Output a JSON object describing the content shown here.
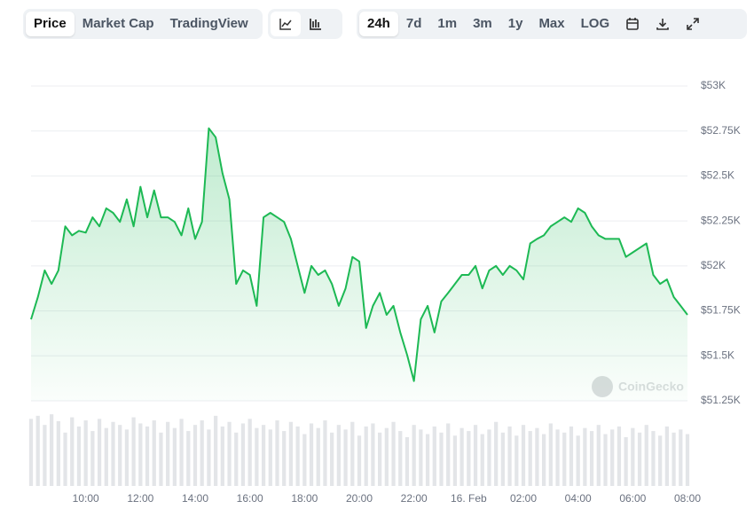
{
  "toolbar": {
    "views": [
      "Price",
      "Market Cap",
      "TradingView"
    ],
    "active_view": "Price",
    "ranges": [
      "24h",
      "7d",
      "1m",
      "3m",
      "1y",
      "Max",
      "LOG"
    ],
    "active_range": "24h"
  },
  "watermark": "CoinGecko",
  "chart_data": {
    "type": "line",
    "categories": [
      null,
      null,
      null,
      null,
      null,
      null,
      null,
      null,
      "10:00",
      null,
      null,
      null,
      null,
      null,
      null,
      null,
      "12:00",
      null,
      null,
      null,
      null,
      null,
      null,
      null,
      "14:00",
      null,
      null,
      null,
      null,
      null,
      null,
      null,
      "16:00",
      null,
      null,
      null,
      null,
      null,
      null,
      null,
      "18:00",
      null,
      null,
      null,
      null,
      null,
      null,
      null,
      "20:00",
      null,
      null,
      null,
      null,
      null,
      null,
      null,
      "22:00",
      null,
      null,
      null,
      null,
      null,
      null,
      null,
      "16. Feb",
      null,
      null,
      null,
      null,
      null,
      null,
      null,
      "02:00",
      null,
      null,
      null,
      null,
      null,
      null,
      null,
      "04:00",
      null,
      null,
      null,
      null,
      null,
      null,
      null,
      "06:00",
      null,
      null,
      null,
      null,
      null,
      null,
      null,
      "08:00"
    ],
    "series": [
      {
        "color": "#1db954",
        "values": [
          51703,
          51827,
          51975,
          51900,
          51975,
          52220,
          52170,
          52195,
          52185,
          52270,
          52220,
          52320,
          52295,
          52245,
          52370,
          52220,
          52440,
          52270,
          52420,
          52270,
          52270,
          52245,
          52170,
          52320,
          52150,
          52245,
          52765,
          52715,
          52515,
          52370,
          51900,
          51975,
          51950,
          51778,
          52270,
          52295,
          52270,
          52245,
          52150,
          52000,
          51850,
          52000,
          51950,
          51975,
          51900,
          51778,
          51875,
          52050,
          52025,
          51655,
          51778,
          51850,
          51728,
          51778,
          51630,
          51505,
          51360,
          51703,
          51778,
          51630,
          51803,
          51850,
          51900,
          51950,
          51950,
          52000,
          51875,
          51975,
          52000,
          51950,
          52000,
          51975,
          51925,
          52125,
          52150,
          52170,
          52220,
          52245,
          52270,
          52245,
          52320,
          52295,
          52220,
          52170,
          52150,
          52150,
          52150,
          52050,
          52075,
          52100,
          52125,
          51950,
          51900,
          51925,
          51827,
          51778,
          51728
        ]
      },
      {
        "color": "#e3e5e8",
        "axis": "y2",
        "values": [
          88,
          92,
          80,
          94,
          85,
          70,
          90,
          78,
          86,
          72,
          88,
          76,
          84,
          80,
          74,
          90,
          82,
          78,
          86,
          70,
          84,
          76,
          88,
          72,
          80,
          86,
          74,
          92,
          78,
          84,
          70,
          82,
          88,
          76,
          80,
          74,
          86,
          72,
          84,
          78,
          68,
          82,
          76,
          86,
          70,
          80,
          74,
          84,
          66,
          78,
          82,
          70,
          76,
          84,
          72,
          64,
          80,
          74,
          68,
          78,
          70,
          82,
          66,
          76,
          72,
          80,
          68,
          74,
          84,
          70,
          78,
          66,
          80,
          72,
          76,
          68,
          82,
          74,
          70,
          78,
          66,
          76,
          72,
          80,
          68,
          74,
          78,
          64,
          76,
          70,
          80,
          72,
          66,
          78,
          70,
          74,
          68
        ]
      }
    ],
    "ylim": [
      51250,
      53000
    ],
    "yticks": [
      {
        "value": 51250,
        "label": "$51.25K"
      },
      {
        "value": 51500,
        "label": "$51.5K"
      },
      {
        "value": 51750,
        "label": "$51.75K"
      },
      {
        "value": 52000,
        "label": "$52K"
      },
      {
        "value": 52250,
        "label": "$52.25K"
      },
      {
        "value": 52500,
        "label": "$52.5K"
      },
      {
        "value": 52750,
        "label": "$52.75K"
      },
      {
        "value": 53000,
        "label": "$53K"
      }
    ],
    "y2lim": [
      0,
      100
    ],
    "grid": true
  }
}
